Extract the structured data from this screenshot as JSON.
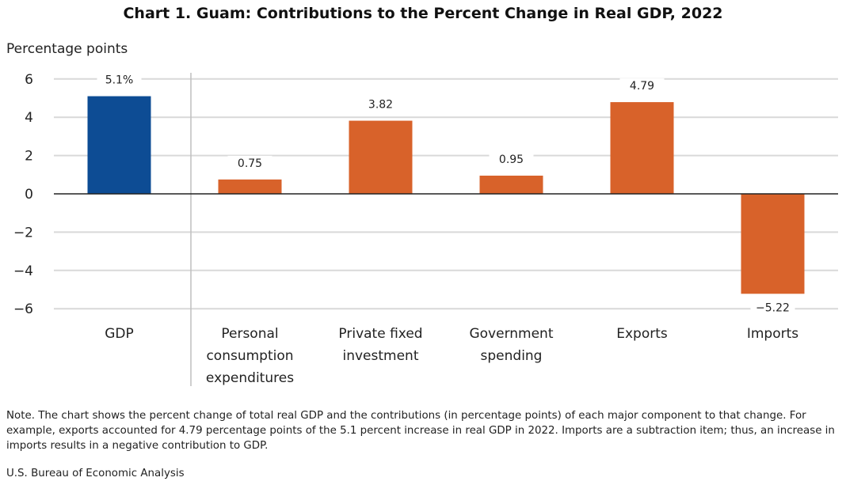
{
  "chart_data": {
    "type": "bar",
    "title": "Chart 1. Guam: Contributions to the Percent Change in Real GDP, 2022",
    "ylabel": "Percentage points",
    "xlabel": "",
    "ylim": [
      -6,
      6
    ],
    "yticks": [
      6,
      4,
      2,
      0,
      -2,
      -4,
      -6
    ],
    "ytick_labels": [
      "6",
      "4",
      "2",
      "0",
      "−2",
      "−4",
      "−6"
    ],
    "grid": true,
    "categories": [
      [
        "GDP"
      ],
      [
        "Personal",
        "consumption",
        "expenditures"
      ],
      [
        "Private fixed",
        "investment"
      ],
      [
        "Government",
        "spending"
      ],
      [
        "Exports"
      ],
      [
        "Imports"
      ]
    ],
    "values": [
      5.1,
      0.75,
      3.82,
      0.95,
      4.79,
      -5.22
    ],
    "data_labels": [
      "5.1%",
      "0.75",
      "3.82",
      "0.95",
      "4.79",
      "−5.22"
    ],
    "colors": [
      "#0D4C94",
      "#D8622A",
      "#D8622A",
      "#D8622A",
      "#D8622A",
      "#D8622A"
    ]
  },
  "note": "Note. The chart shows the percent change of total real GDP and the contributions (in percentage points) of each major component to that change. For example, exports accounted for 4.79 percentage points of the 5.1 percent increase in real GDP in 2022. Imports are a subtraction item; thus, an increase in imports results in a negative contribution to GDP.",
  "source": "U.S. Bureau of Economic Analysis"
}
